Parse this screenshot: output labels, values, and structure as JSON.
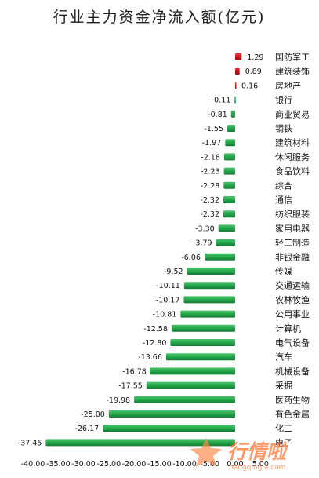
{
  "chart_data": {
    "type": "bar",
    "orientation": "horizontal",
    "title": "行业主力资金净流入额(亿元)",
    "xlabel": "",
    "ylabel": "",
    "xlim": [
      -40,
      5
    ],
    "grid": false,
    "legend": "none",
    "categories": [
      "国防军工",
      "建筑装饰",
      "房地产",
      "银行",
      "商业贸易",
      "钢铁",
      "建筑材料",
      "休闲服务",
      "食品饮料",
      "综合",
      "通信",
      "纺织服装",
      "家用电器",
      "轻工制造",
      "非银金融",
      "传媒",
      "交通运输",
      "农林牧渔",
      "公用事业",
      "计算机",
      "电气设备",
      "汽车",
      "机械设备",
      "采掘",
      "医药生物",
      "有色金属",
      "化工",
      "电子"
    ],
    "values": [
      1.29,
      0.89,
      0.16,
      -0.11,
      -0.81,
      -1.55,
      -1.97,
      -2.18,
      -2.23,
      -2.28,
      -2.32,
      -2.32,
      -3.3,
      -3.79,
      -6.06,
      -9.52,
      -10.11,
      -10.17,
      -10.81,
      -12.58,
      -12.8,
      -13.66,
      -16.78,
      -17.55,
      -19.98,
      -25.0,
      -26.17,
      -37.45
    ],
    "value_labels": [
      "1.29",
      "0.89",
      "0.16",
      "-0.11",
      "-0.81",
      "-1.55",
      "-1.97",
      "-2.18",
      "-2.23",
      "-2.28",
      "-2.32",
      "-2.32",
      "-3.30",
      "-3.79",
      "-6.06",
      "-9.52",
      "-10.11",
      "-10.17",
      "-10.81",
      "-12.58",
      "-12.80",
      "-13.66",
      "-16.78",
      "-17.55",
      "-19.98",
      "-25.00",
      "-26.17",
      "-37.45"
    ],
    "x_ticks": [
      -40,
      -35,
      -30,
      -25,
      -20,
      -15,
      -10,
      -5,
      0,
      5
    ],
    "x_tick_labels": [
      "-40.00",
      "-35.00",
      "-30.00",
      "-25.00",
      "-20.00",
      "-15.00",
      "-10.00",
      "-5.00",
      "0.00",
      "5.00"
    ],
    "colors": {
      "positive": "#c0141b",
      "negative": "#1fa347"
    }
  },
  "watermark": {
    "text": "行情啦",
    "url": "hangqingla.com",
    "color": "#ff7a3a"
  }
}
